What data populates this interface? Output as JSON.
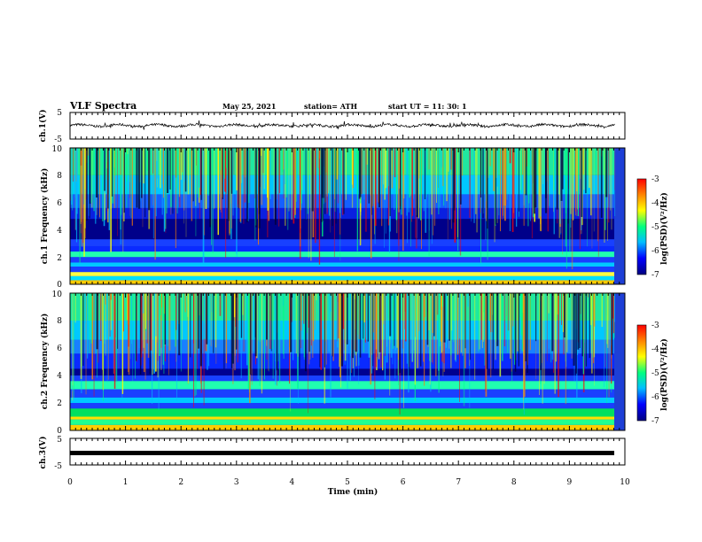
{
  "header": {
    "title": "VLF Spectra",
    "date": "May 25, 2021",
    "station": "station= ATH",
    "start": "start UT =  11: 30: 1"
  },
  "colors": {
    "cmap": [
      "#000080",
      "#0000ff",
      "#00bfff",
      "#00ff80",
      "#ffff00",
      "#ff8000",
      "#ff0000"
    ]
  },
  "chart_data": [
    {
      "id": "ch1-waveform",
      "type": "line",
      "ylabel": "ch.1(V)",
      "ylim": [
        -5,
        5
      ],
      "yticks": [
        "5",
        "-5"
      ],
      "xlim": [
        0,
        10
      ],
      "series": [
        {
          "values_summary": "noisy waveform centered near 0 V, amplitude approx ±1 V"
        }
      ]
    },
    {
      "id": "ch1-spectrogram",
      "type": "heatmap",
      "ylabel": "ch.1  Frequency (kHz)",
      "ylim": [
        0,
        10
      ],
      "yticks": [
        "0",
        "2",
        "4",
        "6",
        "8",
        "10"
      ],
      "colorbar": {
        "label": "log(PSD)(V²/Hz)",
        "range": [
          -7,
          -3
        ],
        "ticks": [
          "-3",
          "-4",
          "-5",
          "-6",
          "-7"
        ]
      }
    },
    {
      "id": "ch2-spectrogram",
      "type": "heatmap",
      "ylabel": "ch.2  Frequency (kHz)",
      "ylim": [
        0,
        10
      ],
      "yticks": [
        "0",
        "2",
        "4",
        "6",
        "8",
        "10"
      ],
      "colorbar": {
        "label": "log(PSD)(V²/Hz)",
        "range": [
          -7,
          -3
        ],
        "ticks": [
          "-3",
          "-4",
          "-5",
          "-6",
          "-7"
        ]
      }
    },
    {
      "id": "ch3-waveform",
      "type": "line",
      "ylabel": "ch.3(V)",
      "ylim": [
        -5,
        5
      ],
      "yticks": [
        "5",
        "-5"
      ],
      "xlim": [
        0,
        10
      ],
      "xticks": [
        "0",
        "1",
        "2",
        "3",
        "4",
        "5",
        "6",
        "7",
        "8",
        "9",
        "10"
      ],
      "xlabel": "Time (min)",
      "series": [
        {
          "values_summary": "flat thick trace near -1 V"
        }
      ]
    }
  ]
}
